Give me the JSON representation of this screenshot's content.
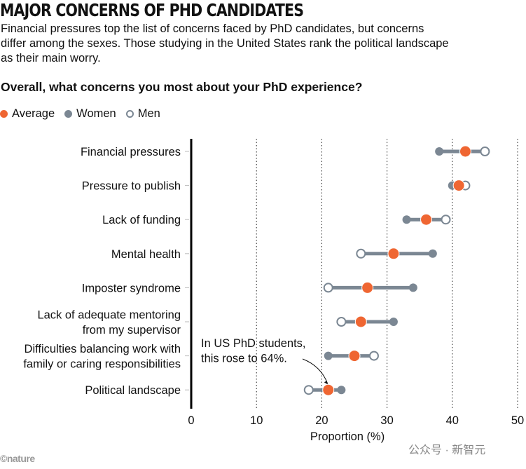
{
  "title": "MAJOR CONCERNS OF PHD CANDIDATES",
  "subtitle": "Financial pressures top the list of concerns faced by PhD candidates, but concerns differ among the sexes. Those studying in the United States rank the political landscape as their main worry.",
  "question": "Overall, what concerns you most about your PhD experience?",
  "logo": "©nature",
  "watermark": "公众号 · 新智元",
  "colors": {
    "average": "#ef6632",
    "women": "#7b8793",
    "men": "#7b8793",
    "line": "#7b8793"
  },
  "chart_data": {
    "type": "dot-range",
    "xlabel": "Proportion (%)",
    "xlim": [
      0,
      50
    ],
    "xticks": [
      "0",
      "10",
      "20",
      "30",
      "40",
      "50"
    ],
    "grid": "vertical dotted",
    "legend": [
      {
        "name": "Average"
      },
      {
        "name": "Women"
      },
      {
        "name": "Men"
      }
    ],
    "legend_position": "top-left",
    "categories": [
      [
        "Financial pressures"
      ],
      [
        "Pressure to publish"
      ],
      [
        "Lack of funding"
      ],
      [
        "Mental health"
      ],
      [
        "Imposter syndrome"
      ],
      [
        "Lack of adequate mentoring",
        "from my supervisor"
      ],
      [
        "Difficulties balancing work with",
        "family or caring responsibilities"
      ],
      [
        "Political landscape"
      ]
    ],
    "series": [
      {
        "name": "Average",
        "values": [
          42,
          41,
          36,
          31,
          27,
          26,
          25,
          21
        ]
      },
      {
        "name": "Women",
        "values": [
          38,
          40,
          33,
          37,
          34,
          31,
          21,
          23
        ]
      },
      {
        "name": "Men",
        "values": [
          45,
          42,
          39,
          26,
          21,
          23,
          28,
          18
        ]
      }
    ],
    "annotation": {
      "lines": [
        "In US PhD students,",
        "this rose to 64%."
      ],
      "category_index": 7
    }
  }
}
